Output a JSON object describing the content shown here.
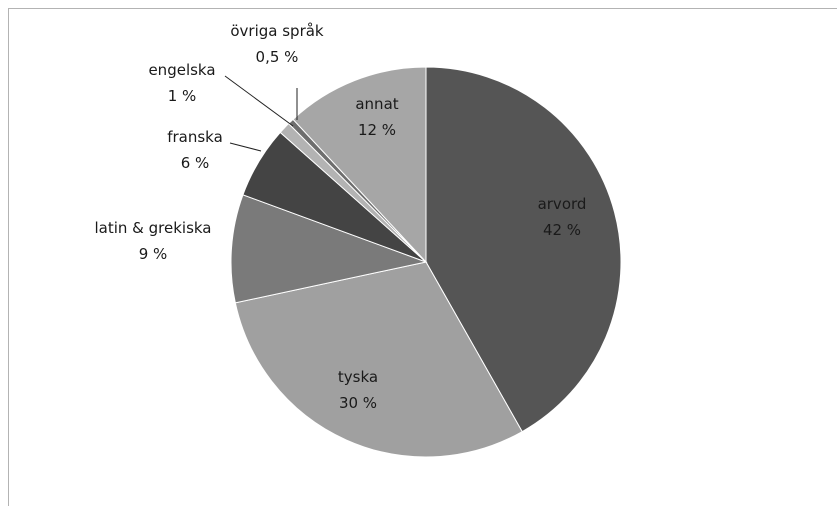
{
  "chart_data": {
    "type": "pie",
    "title": "",
    "slices": [
      {
        "label": "arvord",
        "value": 42,
        "value_label": "42 %",
        "color": "#555555"
      },
      {
        "label": "tyska",
        "value": 30,
        "value_label": "30 %",
        "color": "#a0a0a0"
      },
      {
        "label": "latin & grekiska",
        "value": 9,
        "value_label": "9 %",
        "color": "#7a7a7a"
      },
      {
        "label": "franska",
        "value": 6,
        "value_label": "6 %",
        "color": "#444444"
      },
      {
        "label": "engelska",
        "value": 1,
        "value_label": "1 %",
        "color": "#b3b3b3"
      },
      {
        "label": "övriga språk",
        "value": 0.5,
        "value_label": "0,5 %",
        "color": "#6e6e6e"
      },
      {
        "label": "annat",
        "value": 12,
        "value_label": "12 %",
        "color": "#a6a6a6"
      }
    ],
    "legend": "none",
    "start_angle": "top, clockwise"
  }
}
